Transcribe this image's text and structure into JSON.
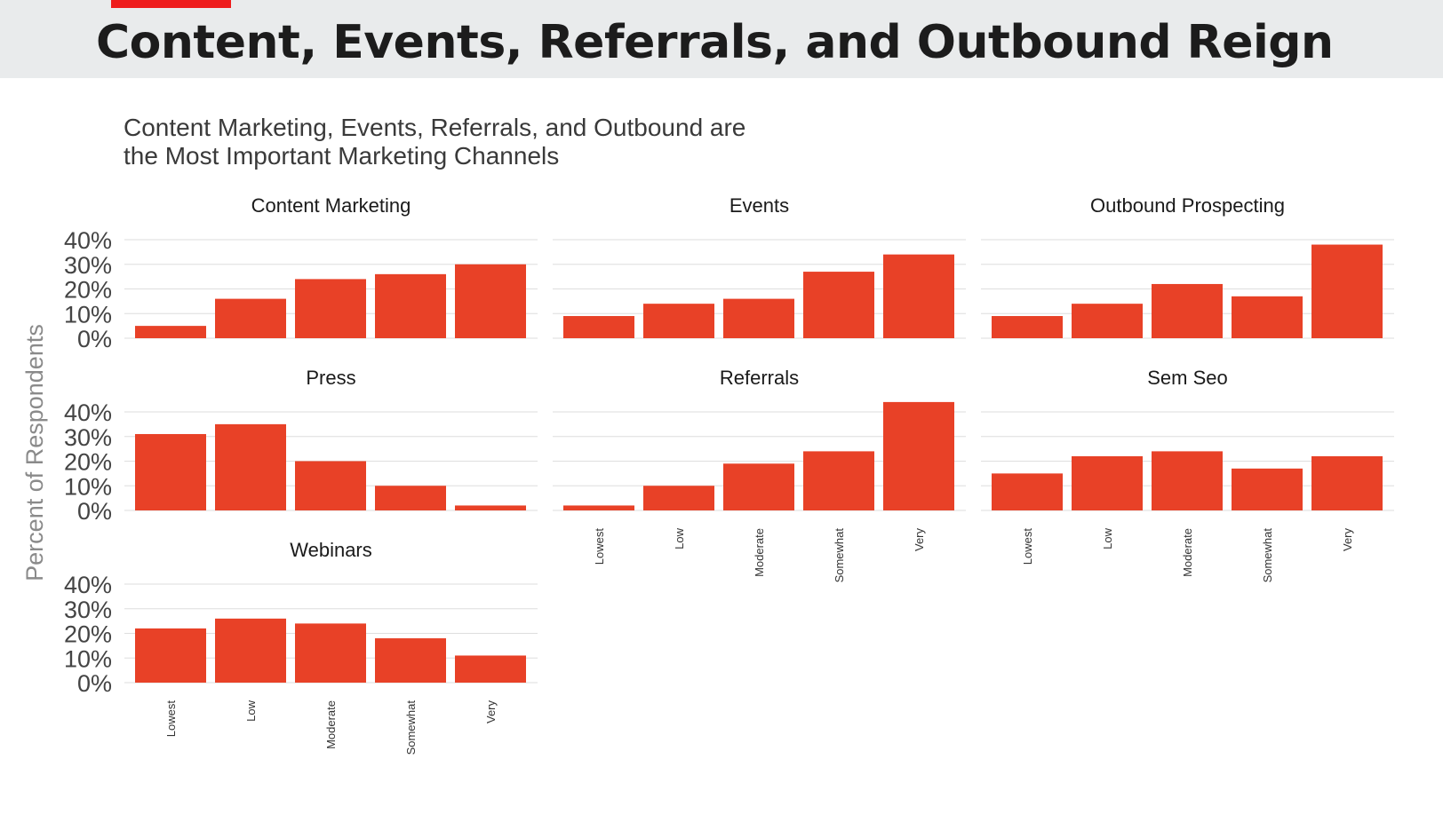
{
  "slide": {
    "title": "Content, Events, Referrals, and Outbound Reign",
    "accent_color": "#ee1c1c",
    "background": "#e9ebec"
  },
  "chart_data": {
    "type": "bar",
    "title_lines": [
      "Content Marketing, Events, Referrals, and Outbound are",
      "the Most Important Marketing Channels"
    ],
    "ylabel": "Percent of Respondents",
    "xlabel": "",
    "ylim": [
      0,
      40
    ],
    "yticks": [
      "40%",
      "30%",
      "20%",
      "10%",
      "0%"
    ],
    "grid": true,
    "bar_color": "#e84127",
    "categories": [
      "Lowest",
      "Low",
      "Moderate",
      "Somewhat",
      "Very"
    ],
    "panels": [
      {
        "name": "Content Marketing",
        "values": [
          5,
          16,
          24,
          26,
          30
        ]
      },
      {
        "name": "Events",
        "values": [
          9,
          14,
          16,
          27,
          34
        ]
      },
      {
        "name": "Outbound Prospecting",
        "values": [
          9,
          14,
          22,
          17,
          38
        ]
      },
      {
        "name": "Press",
        "values": [
          31,
          35,
          20,
          10,
          2
        ]
      },
      {
        "name": "Referrals",
        "values": [
          2,
          10,
          19,
          24,
          44
        ]
      },
      {
        "name": "Sem Seo",
        "values": [
          15,
          22,
          24,
          17,
          22
        ]
      },
      {
        "name": "Webinars",
        "values": [
          22,
          26,
          24,
          18,
          11
        ]
      }
    ]
  }
}
